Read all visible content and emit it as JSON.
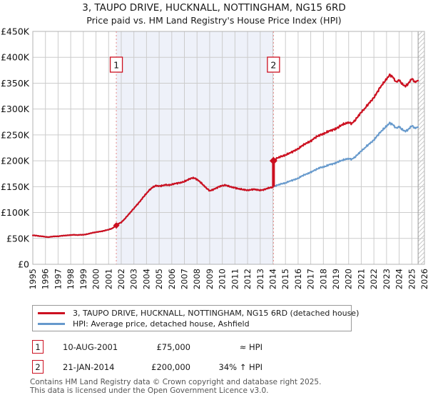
{
  "header": {
    "title": "3, TAUPO DRIVE, HUCKNALL, NOTTINGHAM, NG15 6RD",
    "subtitle": "Price paid vs. HM Land Registry's House Price Index (HPI)"
  },
  "chart_data": {
    "type": "line",
    "title": "3, TAUPO DRIVE, HUCKNALL, NOTTINGHAM, NG15 6RD",
    "subtitle": "Price paid vs. HM Land Registry's House Price Index (HPI)",
    "grid": true,
    "x_axis": {
      "min": 1995,
      "max": 2026,
      "ticks": [
        1995,
        1996,
        1997,
        1998,
        1999,
        2000,
        2001,
        2002,
        2003,
        2004,
        2005,
        2006,
        2007,
        2008,
        2009,
        2010,
        2011,
        2012,
        2013,
        2014,
        2015,
        2016,
        2017,
        2018,
        2019,
        2020,
        2021,
        2022,
        2023,
        2024,
        2025,
        2026
      ]
    },
    "y_axis": {
      "min": 0,
      "max": 450000,
      "tick_step": 50000,
      "tick_labels": [
        "£0",
        "£50K",
        "£100K",
        "£150K",
        "£200K",
        "£250K",
        "£300K",
        "£350K",
        "£400K",
        "£450K"
      ]
    },
    "highlight_span": {
      "from_x": 2001.61,
      "to_x": 2014.05,
      "color": "#eef1f9"
    },
    "future_hatch_from_x": 2025.5,
    "colors": {
      "grid": "#cccccc",
      "border": "#b3b3b3",
      "sale_dash": "#e78a8a",
      "hatch": "#c9c9c9",
      "hatch_edge": "#9a9a9a"
    },
    "series": [
      {
        "name": "3, TAUPO DRIVE, HUCKNALL, NOTTINGHAM, NG15 6RD (detached house)",
        "color": "#cc1020",
        "marker": "diamond",
        "points": [
          [
            1995,
            56000
          ],
          [
            1995.25,
            55500
          ],
          [
            1995.5,
            54500
          ],
          [
            1995.75,
            54000
          ],
          [
            1996,
            53000
          ],
          [
            1996.25,
            52500
          ],
          [
            1996.5,
            53500
          ],
          [
            1996.75,
            54000
          ],
          [
            1997,
            54000
          ],
          [
            1997.25,
            55000
          ],
          [
            1997.5,
            55500
          ],
          [
            1997.75,
            56000
          ],
          [
            1998,
            56500
          ],
          [
            1998.25,
            57000
          ],
          [
            1998.5,
            56500
          ],
          [
            1998.75,
            57000
          ],
          [
            1999,
            57000
          ],
          [
            1999.25,
            58000
          ],
          [
            1999.5,
            59500
          ],
          [
            1999.75,
            61000
          ],
          [
            2000,
            62000
          ],
          [
            2000.25,
            63000
          ],
          [
            2000.5,
            64000
          ],
          [
            2000.75,
            65500
          ],
          [
            2001,
            67000
          ],
          [
            2001.25,
            69000
          ],
          [
            2001.61,
            75000
          ],
          [
            2001.75,
            78000
          ],
          [
            2002,
            81000
          ],
          [
            2002.25,
            87000
          ],
          [
            2002.5,
            94000
          ],
          [
            2002.75,
            101000
          ],
          [
            2003,
            108000
          ],
          [
            2003.25,
            115000
          ],
          [
            2003.5,
            122000
          ],
          [
            2003.75,
            130000
          ],
          [
            2004,
            137000
          ],
          [
            2004.25,
            144000
          ],
          [
            2004.5,
            149000
          ],
          [
            2004.75,
            152000
          ],
          [
            2005,
            151000
          ],
          [
            2005.25,
            152000
          ],
          [
            2005.5,
            153500
          ],
          [
            2005.75,
            153000
          ],
          [
            2006,
            154000
          ],
          [
            2006.25,
            156000
          ],
          [
            2006.5,
            157000
          ],
          [
            2006.75,
            158000
          ],
          [
            2007,
            160000
          ],
          [
            2007.25,
            163000
          ],
          [
            2007.5,
            166000
          ],
          [
            2007.75,
            167000
          ],
          [
            2008,
            164000
          ],
          [
            2008.25,
            159000
          ],
          [
            2008.5,
            153000
          ],
          [
            2008.75,
            147000
          ],
          [
            2009,
            142000
          ],
          [
            2009.25,
            144000
          ],
          [
            2009.5,
            147000
          ],
          [
            2009.75,
            150000
          ],
          [
            2010,
            152000
          ],
          [
            2010.25,
            153000
          ],
          [
            2010.5,
            151000
          ],
          [
            2010.75,
            149000
          ],
          [
            2011,
            148000
          ],
          [
            2011.25,
            146000
          ],
          [
            2011.5,
            145000
          ],
          [
            2011.75,
            144000
          ],
          [
            2012,
            143000
          ],
          [
            2012.25,
            144000
          ],
          [
            2012.5,
            145000
          ],
          [
            2012.75,
            144000
          ],
          [
            2013,
            143000
          ],
          [
            2013.25,
            144000
          ],
          [
            2013.5,
            146000
          ],
          [
            2013.75,
            148000
          ],
          [
            2014,
            149000
          ],
          [
            2014.05,
            200000
          ],
          [
            2014.25,
            204000
          ],
          [
            2014.5,
            207000
          ],
          [
            2014.75,
            209000
          ],
          [
            2015,
            211000
          ],
          [
            2015.25,
            214000
          ],
          [
            2015.5,
            217000
          ],
          [
            2015.75,
            220000
          ],
          [
            2016,
            223000
          ],
          [
            2016.25,
            228000
          ],
          [
            2016.5,
            232000
          ],
          [
            2016.75,
            235000
          ],
          [
            2017,
            238000
          ],
          [
            2017.25,
            243000
          ],
          [
            2017.5,
            247000
          ],
          [
            2017.75,
            250000
          ],
          [
            2018,
            252000
          ],
          [
            2018.25,
            255000
          ],
          [
            2018.5,
            258000
          ],
          [
            2018.75,
            260000
          ],
          [
            2019,
            262000
          ],
          [
            2019.25,
            266000
          ],
          [
            2019.5,
            270000
          ],
          [
            2019.75,
            272000
          ],
          [
            2020,
            274000
          ],
          [
            2020.25,
            272000
          ],
          [
            2020.5,
            278000
          ],
          [
            2020.75,
            286000
          ],
          [
            2021,
            294000
          ],
          [
            2021.25,
            300000
          ],
          [
            2021.5,
            308000
          ],
          [
            2021.75,
            315000
          ],
          [
            2022,
            322000
          ],
          [
            2022.25,
            332000
          ],
          [
            2022.5,
            342000
          ],
          [
            2022.75,
            350000
          ],
          [
            2023,
            358000
          ],
          [
            2023.25,
            366000
          ],
          [
            2023.5,
            362000
          ],
          [
            2023.75,
            352000
          ],
          [
            2024,
            356000
          ],
          [
            2024.25,
            348000
          ],
          [
            2024.5,
            344000
          ],
          [
            2024.75,
            350000
          ],
          [
            2025,
            359000
          ],
          [
            2025.25,
            352000
          ],
          [
            2025.5,
            355000
          ]
        ]
      },
      {
        "name": "HPI: Average price, detached house, Ashfield",
        "color": "#6699cc",
        "points": [
          [
            1995,
            56000
          ],
          [
            1995.25,
            55500
          ],
          [
            1995.5,
            54500
          ],
          [
            1995.75,
            54000
          ],
          [
            1996,
            53000
          ],
          [
            1996.25,
            52500
          ],
          [
            1996.5,
            53500
          ],
          [
            1996.75,
            54000
          ],
          [
            1997,
            54000
          ],
          [
            1997.25,
            55000
          ],
          [
            1997.5,
            55500
          ],
          [
            1997.75,
            56000
          ],
          [
            1998,
            56500
          ],
          [
            1998.25,
            57000
          ],
          [
            1998.5,
            56500
          ],
          [
            1998.75,
            57000
          ],
          [
            1999,
            57000
          ],
          [
            1999.25,
            58000
          ],
          [
            1999.5,
            59500
          ],
          [
            1999.75,
            61000
          ],
          [
            2000,
            62000
          ],
          [
            2000.25,
            63000
          ],
          [
            2000.5,
            64000
          ],
          [
            2000.75,
            65500
          ],
          [
            2001,
            67000
          ],
          [
            2001.25,
            69000
          ],
          [
            2001.61,
            75000
          ],
          [
            2001.75,
            78000
          ],
          [
            2002,
            81000
          ],
          [
            2002.25,
            87000
          ],
          [
            2002.5,
            94000
          ],
          [
            2002.75,
            101000
          ],
          [
            2003,
            108000
          ],
          [
            2003.25,
            115000
          ],
          [
            2003.5,
            122000
          ],
          [
            2003.75,
            130000
          ],
          [
            2004,
            137000
          ],
          [
            2004.25,
            144000
          ],
          [
            2004.5,
            149000
          ],
          [
            2004.75,
            152000
          ],
          [
            2005,
            151000
          ],
          [
            2005.25,
            152000
          ],
          [
            2005.5,
            153500
          ],
          [
            2005.75,
            153000
          ],
          [
            2006,
            154000
          ],
          [
            2006.25,
            156000
          ],
          [
            2006.5,
            157000
          ],
          [
            2006.75,
            158000
          ],
          [
            2007,
            160000
          ],
          [
            2007.25,
            163000
          ],
          [
            2007.5,
            166000
          ],
          [
            2007.75,
            167000
          ],
          [
            2008,
            164000
          ],
          [
            2008.25,
            159000
          ],
          [
            2008.5,
            153000
          ],
          [
            2008.75,
            147000
          ],
          [
            2009,
            142000
          ],
          [
            2009.25,
            144000
          ],
          [
            2009.5,
            147000
          ],
          [
            2009.75,
            150000
          ],
          [
            2010,
            152000
          ],
          [
            2010.25,
            153000
          ],
          [
            2010.5,
            151000
          ],
          [
            2010.75,
            149000
          ],
          [
            2011,
            148000
          ],
          [
            2011.25,
            146000
          ],
          [
            2011.5,
            145000
          ],
          [
            2011.75,
            144000
          ],
          [
            2012,
            143000
          ],
          [
            2012.25,
            144000
          ],
          [
            2012.5,
            145000
          ],
          [
            2012.75,
            144000
          ],
          [
            2013,
            143000
          ],
          [
            2013.25,
            144000
          ],
          [
            2013.5,
            146000
          ],
          [
            2013.75,
            148000
          ],
          [
            2014,
            149000
          ],
          [
            2014.05,
            150000
          ],
          [
            2014.25,
            152000
          ],
          [
            2014.5,
            154000
          ],
          [
            2014.75,
            156000
          ],
          [
            2015,
            157000
          ],
          [
            2015.25,
            160000
          ],
          [
            2015.5,
            162000
          ],
          [
            2015.75,
            164000
          ],
          [
            2016,
            166000
          ],
          [
            2016.25,
            170000
          ],
          [
            2016.5,
            173000
          ],
          [
            2016.75,
            175000
          ],
          [
            2017,
            178000
          ],
          [
            2017.25,
            181000
          ],
          [
            2017.5,
            184000
          ],
          [
            2017.75,
            187000
          ],
          [
            2018,
            188000
          ],
          [
            2018.25,
            190000
          ],
          [
            2018.5,
            193000
          ],
          [
            2018.75,
            194000
          ],
          [
            2019,
            196000
          ],
          [
            2019.25,
            199000
          ],
          [
            2019.5,
            201000
          ],
          [
            2019.75,
            203000
          ],
          [
            2020,
            204000
          ],
          [
            2020.25,
            203000
          ],
          [
            2020.5,
            207000
          ],
          [
            2020.75,
            213000
          ],
          [
            2021,
            219000
          ],
          [
            2021.25,
            224000
          ],
          [
            2021.5,
            230000
          ],
          [
            2021.75,
            235000
          ],
          [
            2022,
            240000
          ],
          [
            2022.25,
            248000
          ],
          [
            2022.5,
            255000
          ],
          [
            2022.75,
            261000
          ],
          [
            2023,
            267000
          ],
          [
            2023.25,
            273000
          ],
          [
            2023.5,
            270000
          ],
          [
            2023.75,
            263000
          ],
          [
            2024,
            266000
          ],
          [
            2024.25,
            260000
          ],
          [
            2024.5,
            257000
          ],
          [
            2024.75,
            261000
          ],
          [
            2025,
            268000
          ],
          [
            2025.25,
            263000
          ],
          [
            2025.5,
            265000
          ]
        ]
      }
    ],
    "sale_markers": [
      {
        "label": "1",
        "x": 2001.61,
        "value": 75000
      },
      {
        "label": "2",
        "x": 2014.05,
        "value": 200000,
        "jump_from": 150000
      }
    ]
  },
  "legend": {
    "items": [
      {
        "label": "3, TAUPO DRIVE, HUCKNALL, NOTTINGHAM, NG15 6RD (detached house)",
        "color": "#cc1020"
      },
      {
        "label": "HPI: Average price, detached house, Ashfield",
        "color": "#6699cc"
      }
    ]
  },
  "annotations": [
    {
      "ref": "1",
      "date": "10-AUG-2001",
      "price": "£75,000",
      "vs_hpi": "≈ HPI"
    },
    {
      "ref": "2",
      "date": "21-JAN-2014",
      "price": "£200,000",
      "vs_hpi": "34% ↑ HPI"
    }
  ],
  "footer": {
    "line1": "Contains HM Land Registry data © Crown copyright and database right 2025.",
    "line2": "This data is licensed under the Open Government Licence v3.0."
  }
}
